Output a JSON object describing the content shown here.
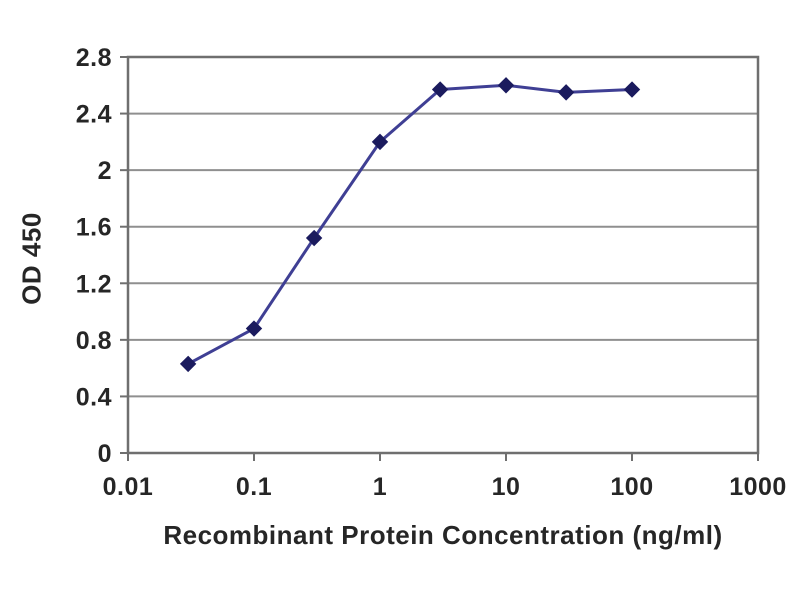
{
  "figure": {
    "background": "#ffffff"
  },
  "chart_data": {
    "type": "line",
    "title": "",
    "xlabel": "Recombinant Protein Concentration (ng/ml)",
    "ylabel": "OD 450",
    "x_scale": "log",
    "y_scale": "linear",
    "xlim": [
      0.01,
      1000
    ],
    "ylim": [
      0,
      2.8
    ],
    "x_ticks": [
      0.01,
      0.1,
      1,
      10,
      100,
      1000
    ],
    "x_tick_labels": [
      "0.01",
      "0.1",
      "1",
      "10",
      "100",
      "1000"
    ],
    "y_ticks": [
      0,
      0.4,
      0.8,
      1.2,
      1.6,
      2,
      2.4,
      2.8
    ],
    "y_tick_labels": [
      "0",
      "0.4",
      "0.8",
      "1.2",
      "1.6",
      "2",
      "2.4",
      "2.8"
    ],
    "grid": "horizontal",
    "legend": "none",
    "series": [
      {
        "name": "OD 450",
        "marker": "diamond",
        "x": [
          0.03,
          0.1,
          0.3,
          1,
          3,
          10,
          30,
          100
        ],
        "y": [
          0.63,
          0.88,
          1.52,
          2.2,
          2.57,
          2.6,
          2.55,
          2.57
        ]
      }
    ],
    "colors": {
      "line": "#3f3f94",
      "marker": "#1b1b5e",
      "grid": "#8f8f8f",
      "plot_border": "#6f6f6f",
      "tick": "#6f6f6f",
      "text": "#262626"
    }
  }
}
